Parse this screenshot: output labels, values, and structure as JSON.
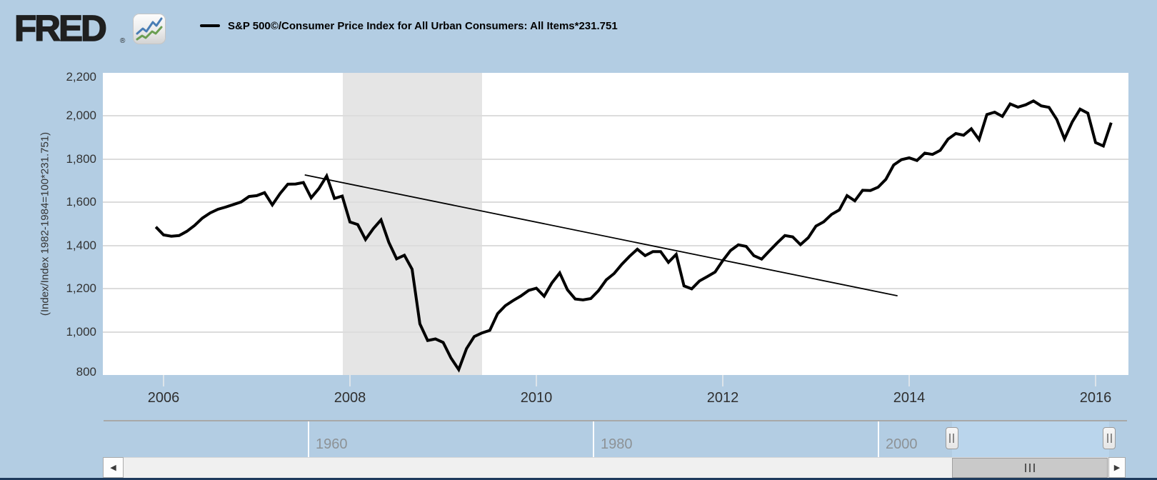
{
  "header": {
    "logo_text": "FRED",
    "logo_reg": "®",
    "legend": {
      "label": "S&P 500©/Consumer Price Index for All Urban Consumers: All Items*231.751"
    }
  },
  "chart_data": {
    "type": "line",
    "title": "S&P 500©/Consumer Price Index for All Urban Consumers: All Items*231.751",
    "ylabel": "(Index/Index 1982-1984=100*231.751)",
    "xlabel": "",
    "ylim": [
      800,
      2200
    ],
    "xlim_years": [
      2005.35,
      2016.35
    ],
    "grid": true,
    "line_color": "#000000",
    "y_ticks": {
      "values": [
        800,
        1000,
        1200,
        1400,
        1600,
        1800,
        2000,
        2200
      ],
      "labels": [
        "800",
        "1,000",
        "1,200",
        "1,400",
        "1,600",
        "1,800",
        "2,000",
        "2,200"
      ]
    },
    "x_ticks": {
      "values": [
        2006,
        2008,
        2010,
        2012,
        2014,
        2016
      ],
      "labels": [
        "2006",
        "2008",
        "2010",
        "2012",
        "2014",
        "2016"
      ]
    },
    "recession_band_years": [
      2007.92,
      2009.42
    ],
    "series": [
      {
        "name": "S&P 500©/Consumer Price Index for All Urban Consumers: All Items*231.751",
        "color": "#000000",
        "frequency": "monthly",
        "start": "2005-12",
        "start_year_decimal": 2005.917,
        "values": [
          1486,
          1449,
          1443,
          1446,
          1466,
          1493,
          1527,
          1551,
          1568,
          1578,
          1590,
          1602,
          1627,
          1631,
          1645,
          1588,
          1641,
          1684,
          1685,
          1692,
          1621,
          1664,
          1722,
          1618,
          1629,
          1509,
          1497,
          1428,
          1478,
          1519,
          1415,
          1338,
          1355,
          1290,
          1037,
          960,
          967,
          951,
          879,
          825,
          922,
          978,
          995,
          1007,
          1084,
          1121,
          1145,
          1166,
          1192,
          1202,
          1165,
          1227,
          1273,
          1195,
          1152,
          1148,
          1154,
          1191,
          1241,
          1270,
          1313,
          1350,
          1383,
          1353,
          1372,
          1372,
          1322,
          1359,
          1213,
          1199,
          1236,
          1256,
          1277,
          1330,
          1377,
          1403,
          1396,
          1353,
          1337,
          1375,
          1412,
          1446,
          1440,
          1404,
          1436,
          1490,
          1510,
          1544,
          1565,
          1631,
          1607,
          1656,
          1655,
          1670,
          1707,
          1773,
          1798,
          1806,
          1794,
          1828,
          1822,
          1841,
          1893,
          1919,
          1911,
          1941,
          1891,
          2007,
          2018,
          1998,
          2056,
          2041,
          2052,
          2070,
          2047,
          2040,
          1984,
          1894,
          1973,
          2032,
          2013,
          1877,
          1861,
          1969
        ]
      }
    ],
    "trendline": {
      "x1_year": 2007.515,
      "y1": 1727,
      "x2_year": 2013.875,
      "y2": 1167
    }
  },
  "timeline": {
    "tick_labels": [
      "1960",
      "1980",
      "2000"
    ],
    "tick_years": [
      1960,
      1980,
      2000
    ],
    "selection": {
      "start_year": 2005.2,
      "end_year": 2016.25
    }
  },
  "scrollbar": {
    "left_arrow": "◀",
    "right_arrow": "▶"
  },
  "colors": {
    "page_bg": "#b3cde3",
    "plot_bg": "#ffffff",
    "gridline": "#dcdcdc",
    "recession_band": "#e5e5e5",
    "series_line": "#000000",
    "axis_text": "#333333",
    "timeline_label": "#8d9296",
    "selection_bg": "#bad5ec",
    "mini_line": "#4c7cae",
    "mini_fill": "#7aa2cc",
    "scroll_thumb": "#c9c9c9",
    "bottom_bar": "#1e3a5c",
    "logo_green": "#6a9e51",
    "logo_blue": "#4a7eb5"
  }
}
